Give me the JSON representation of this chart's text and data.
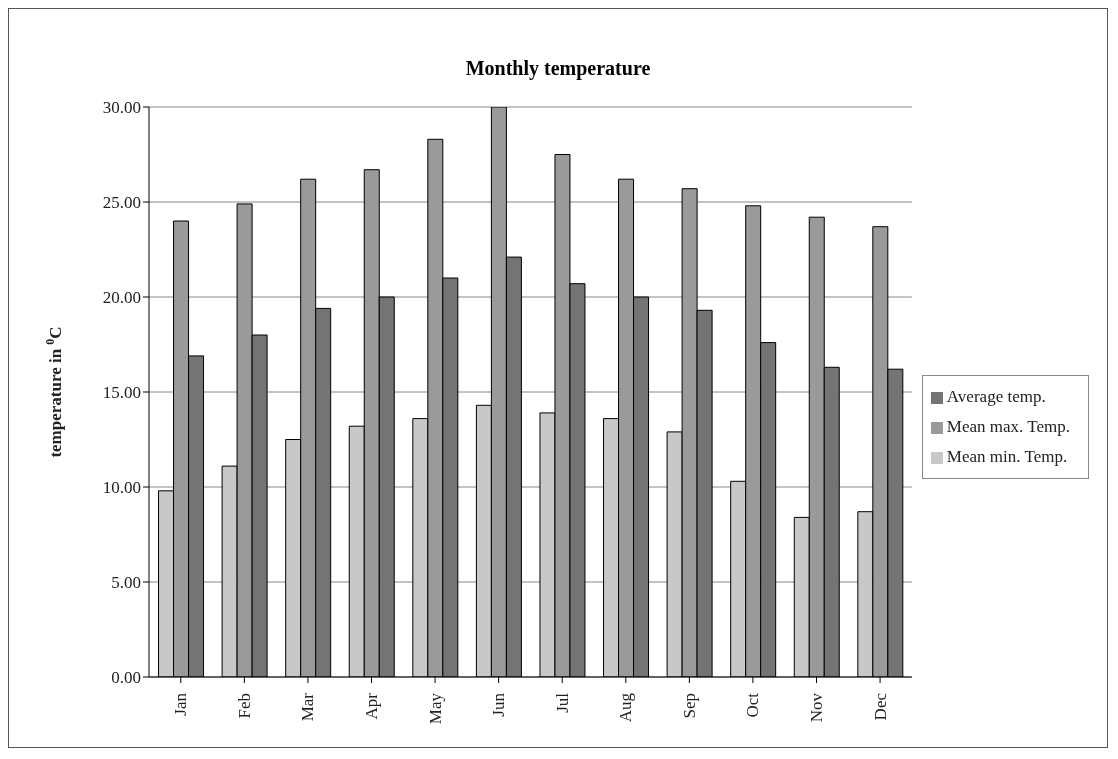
{
  "chart_data": {
    "type": "bar",
    "title": "Monthly temperature",
    "ylabel": "temperature in $^{0}$C",
    "categories": [
      "Jan",
      "Feb",
      "Mar",
      "Apr",
      "May",
      "Jun",
      "Jul",
      "Aug",
      "Sep",
      "Oct",
      "Nov",
      "Dec"
    ],
    "series": [
      {
        "name": "Mean min. Temp.",
        "color": "#c8c8c8",
        "values": [
          9.8,
          11.1,
          12.5,
          13.2,
          13.6,
          14.3,
          13.9,
          13.6,
          12.9,
          10.3,
          8.4,
          8.7
        ]
      },
      {
        "name": "Mean max. Temp.",
        "color": "#9a9a9a",
        "values": [
          24.0,
          24.9,
          26.2,
          26.7,
          28.3,
          30.0,
          27.5,
          26.2,
          25.7,
          24.8,
          24.2,
          23.7
        ]
      },
      {
        "name": "Average temp.",
        "color": "#747474",
        "values": [
          16.9,
          18.0,
          19.4,
          20.0,
          21.0,
          22.1,
          20.7,
          20.0,
          19.3,
          17.6,
          16.3,
          16.2
        ]
      }
    ],
    "ylim": [
      0,
      30
    ],
    "yticks": [
      {
        "value": 0,
        "label": "0.00"
      },
      {
        "value": 5,
        "label": "5.00"
      },
      {
        "value": 10,
        "label": "10.00"
      },
      {
        "value": 15,
        "label": "15.00"
      },
      {
        "value": 20,
        "label": "20.00"
      },
      {
        "value": 25,
        "label": "25.00"
      },
      {
        "value": 30,
        "label": "30.00"
      }
    ],
    "grid": "y",
    "legend": "right"
  }
}
